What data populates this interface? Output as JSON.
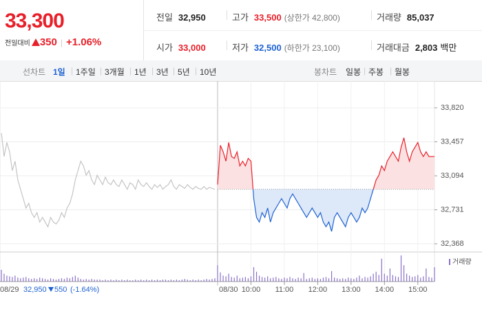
{
  "header": {
    "price": "33,300",
    "change_label": "전일대비",
    "change": "350",
    "change_pct": "+1.06%"
  },
  "stats": [
    {
      "label": "전일",
      "value": "32,950",
      "color": "#222222"
    },
    {
      "label": "고가",
      "value": "33,500",
      "note": "(상한가 42,800)",
      "color": "#e8202a"
    },
    {
      "label": "거래량",
      "value": "85,037",
      "color": "#222222"
    },
    {
      "label": "시가",
      "value": "33,000",
      "color": "#e8202a"
    },
    {
      "label": "저가",
      "value": "32,500",
      "note": "(하한가 23,100)",
      "color": "#1e62d2"
    },
    {
      "label": "거래대금",
      "value": "2,803",
      "unit": "백만",
      "color": "#222222"
    }
  ],
  "tabs": {
    "line_label": "선차트",
    "line_items": [
      "1일",
      "1주일",
      "3개월",
      "1년",
      "3년",
      "5년",
      "10년"
    ],
    "candle_label": "봉차트",
    "candle_items": [
      "일봉",
      "주봉",
      "월봉"
    ]
  },
  "chart_data": {
    "type": "line",
    "ylim": [
      32295,
      34040
    ],
    "yticks": [
      {
        "value": 33820,
        "label": "33,820"
      },
      {
        "value": 33457,
        "label": "33,457"
      },
      {
        "value": 33094,
        "label": "33,094"
      },
      {
        "value": 32731,
        "label": "32,731"
      },
      {
        "value": 32368,
        "label": "32,368"
      }
    ],
    "xlim": [
      540,
      930
    ],
    "xticks": [
      {
        "value": 600,
        "label": "10:00"
      },
      {
        "value": 660,
        "label": "11:00"
      },
      {
        "value": 720,
        "label": "12:00"
      },
      {
        "value": 780,
        "label": "13:00"
      },
      {
        "value": 840,
        "label": "14:00"
      },
      {
        "value": 900,
        "label": "15:00"
      }
    ],
    "x": [
      540,
      545,
      550,
      555,
      560,
      565,
      570,
      575,
      580,
      585,
      590,
      595,
      600,
      605,
      610,
      615,
      620,
      625,
      630,
      635,
      640,
      645,
      650,
      655,
      660,
      665,
      670,
      675,
      680,
      685,
      690,
      695,
      700,
      705,
      710,
      715,
      720,
      725,
      730,
      735,
      740,
      745,
      750,
      755,
      760,
      765,
      770,
      775,
      780,
      785,
      790,
      795,
      800,
      805,
      810,
      815,
      820,
      825,
      830,
      835,
      840,
      845,
      850,
      855,
      860,
      865,
      870,
      875,
      880,
      885,
      890,
      895,
      900,
      905,
      910,
      915,
      920,
      925,
      930
    ],
    "reference_line": 32950,
    "grid": true,
    "volume_name": "거래량",
    "volume_color": "#8a70c8",
    "prev_summary": {
      "close": "32,950",
      "change": "550",
      "change_pct": "(-1.64%)",
      "color": "#1e62d2"
    },
    "series": [
      {
        "date": "08/29",
        "color": "#c4c4c4",
        "values": [
          33550,
          33300,
          33450,
          33350,
          33150,
          33250,
          33050,
          32950,
          32850,
          32750,
          32800,
          32700,
          32650,
          32700,
          32600,
          32650,
          32600,
          32550,
          32650,
          32600,
          32580,
          32620,
          32700,
          32650,
          32750,
          32800,
          32900,
          33050,
          33150,
          33250,
          33200,
          33100,
          33150,
          33050,
          33000,
          33100,
          33050,
          33000,
          33080,
          33020,
          33000,
          33050,
          33000,
          32980,
          33050,
          33000,
          32950,
          33020,
          33000,
          32950,
          33050,
          33000,
          32980,
          33020,
          32980,
          32950,
          33000,
          32970,
          33000,
          32950,
          32980,
          33000,
          33050,
          32980,
          32950,
          33000,
          32980,
          32960,
          33000,
          32970,
          32950,
          32980,
          32960,
          32950,
          32980,
          32950,
          32970,
          32960,
          32950
        ],
        "volume": [
          1800,
          1200,
          900,
          800,
          700,
          900,
          600,
          500,
          600,
          700,
          500,
          400,
          500,
          400,
          600,
          500,
          400,
          300,
          500,
          400,
          300,
          400,
          500,
          400,
          600,
          500,
          700,
          900,
          600,
          400,
          300,
          400,
          300,
          400,
          300,
          300,
          300,
          200,
          300,
          200,
          300,
          200,
          300,
          200,
          300,
          200,
          300,
          200,
          200,
          300,
          200,
          300,
          200,
          300,
          200,
          300,
          200,
          300,
          200,
          300,
          300,
          200,
          300,
          200,
          300,
          200,
          300,
          400,
          300,
          200,
          300,
          200,
          300,
          200,
          300,
          400,
          300,
          400,
          500
        ]
      },
      {
        "date": "08/30",
        "color": "#e8202a",
        "below_color": "#1e62d2",
        "fill": "#fbe1e1",
        "below_fill": "#dde8f8",
        "values": [
          33000,
          33420,
          33350,
          33250,
          33450,
          33300,
          33280,
          33350,
          33200,
          33250,
          33200,
          33280,
          33250,
          32850,
          32650,
          32600,
          32700,
          32650,
          32750,
          32600,
          32700,
          32750,
          32800,
          32850,
          32800,
          32750,
          32850,
          32900,
          32850,
          32800,
          32750,
          32700,
          32650,
          32700,
          32750,
          32700,
          32650,
          32700,
          32600,
          32550,
          32600,
          32500,
          32650,
          32700,
          32650,
          32600,
          32550,
          32650,
          32700,
          32650,
          32600,
          32650,
          32750,
          32700,
          32750,
          32850,
          32950,
          33050,
          33100,
          33200,
          33150,
          33250,
          33300,
          33350,
          33300,
          33250,
          33400,
          33500,
          33350,
          33250,
          33350,
          33400,
          33450,
          33350,
          33300,
          33350,
          33300,
          33300,
          33300
        ],
        "volume": [
          2500,
          1400,
          900,
          800,
          1200,
          700,
          600,
          900,
          500,
          600,
          700,
          500,
          800,
          2200,
          1500,
          900,
          700,
          600,
          800,
          500,
          600,
          700,
          500,
          400,
          600,
          500,
          700,
          500,
          400,
          600,
          500,
          1300,
          400,
          500,
          600,
          400,
          500,
          400,
          600,
          700,
          500,
          1600,
          600,
          500,
          400,
          500,
          400,
          600,
          500,
          400,
          600,
          900,
          500,
          700,
          600,
          800,
          1200,
          1500,
          1000,
          3500,
          1200,
          900,
          2000,
          1000,
          800,
          700,
          4000,
          2500,
          1200,
          900,
          700,
          800,
          1000,
          600,
          800,
          2000,
          700,
          600,
          2200
        ]
      }
    ]
  }
}
